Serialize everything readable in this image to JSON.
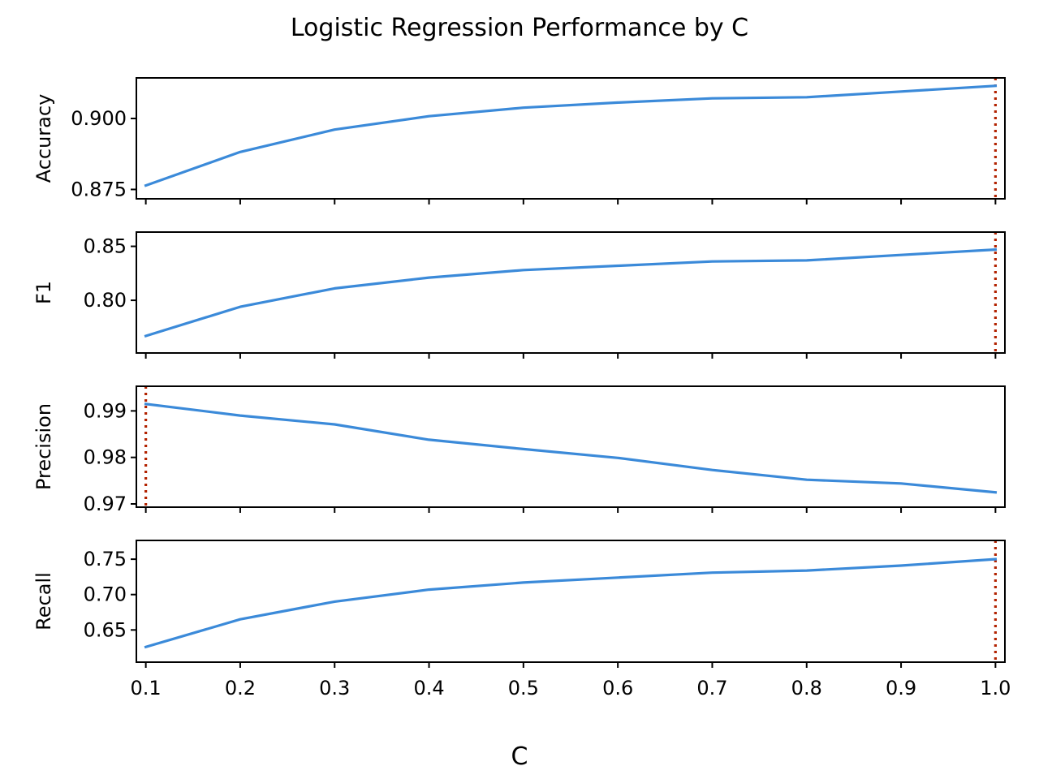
{
  "colors": {
    "line": "#3b8ad9",
    "best_marker": "#b22200"
  },
  "chart_data": {
    "type": "line",
    "title": "Logistic Regression Performance by C",
    "xlabel": "C",
    "x": [
      0.1,
      0.2,
      0.3,
      0.4,
      0.5,
      0.6,
      0.7,
      0.8,
      0.9,
      1.0
    ],
    "x_tick_labels": [
      "0.1",
      "0.2",
      "0.3",
      "0.4",
      "0.5",
      "0.6",
      "0.7",
      "0.8",
      "0.9",
      "1.0"
    ],
    "xlim": [
      0.09,
      1.01
    ],
    "grid": false,
    "subplots": [
      {
        "ylabel": "Accuracy",
        "values": [
          0.8764,
          0.8882,
          0.8961,
          0.9008,
          0.9038,
          0.9056,
          0.9071,
          0.9075,
          0.9095,
          0.9115
        ],
        "ylim": [
          0.8717,
          0.9143
        ],
        "yticks": [
          0.875,
          0.9
        ],
        "ytick_labels": [
          "0.875",
          "0.900"
        ],
        "best_x": 1.0
      },
      {
        "ylabel": "F1",
        "values": [
          0.767,
          0.794,
          0.811,
          0.821,
          0.828,
          0.832,
          0.836,
          0.837,
          0.842,
          0.847
        ],
        "ylim": [
          0.7512,
          0.8632
        ],
        "yticks": [
          0.8,
          0.85
        ],
        "ytick_labels": [
          "0.80",
          "0.85"
        ],
        "best_x": 1.0
      },
      {
        "ylabel": "Precision",
        "values": [
          0.9915,
          0.989,
          0.9871,
          0.9838,
          0.9818,
          0.9799,
          0.9773,
          0.9752,
          0.9744,
          0.9725
        ],
        "ylim": [
          0.9693,
          0.9953
        ],
        "yticks": [
          0.97,
          0.98,
          0.99
        ],
        "ytick_labels": [
          "0.97",
          "0.98",
          "0.99"
        ],
        "best_x": 0.1
      },
      {
        "ylabel": "Recall",
        "values": [
          0.626,
          0.665,
          0.69,
          0.707,
          0.717,
          0.724,
          0.731,
          0.734,
          0.741,
          0.75
        ],
        "ylim": [
          0.6045,
          0.7765
        ],
        "yticks": [
          0.65,
          0.7,
          0.75
        ],
        "ytick_labels": [
          "0.65",
          "0.70",
          "0.75"
        ],
        "best_x": 1.0
      }
    ]
  }
}
